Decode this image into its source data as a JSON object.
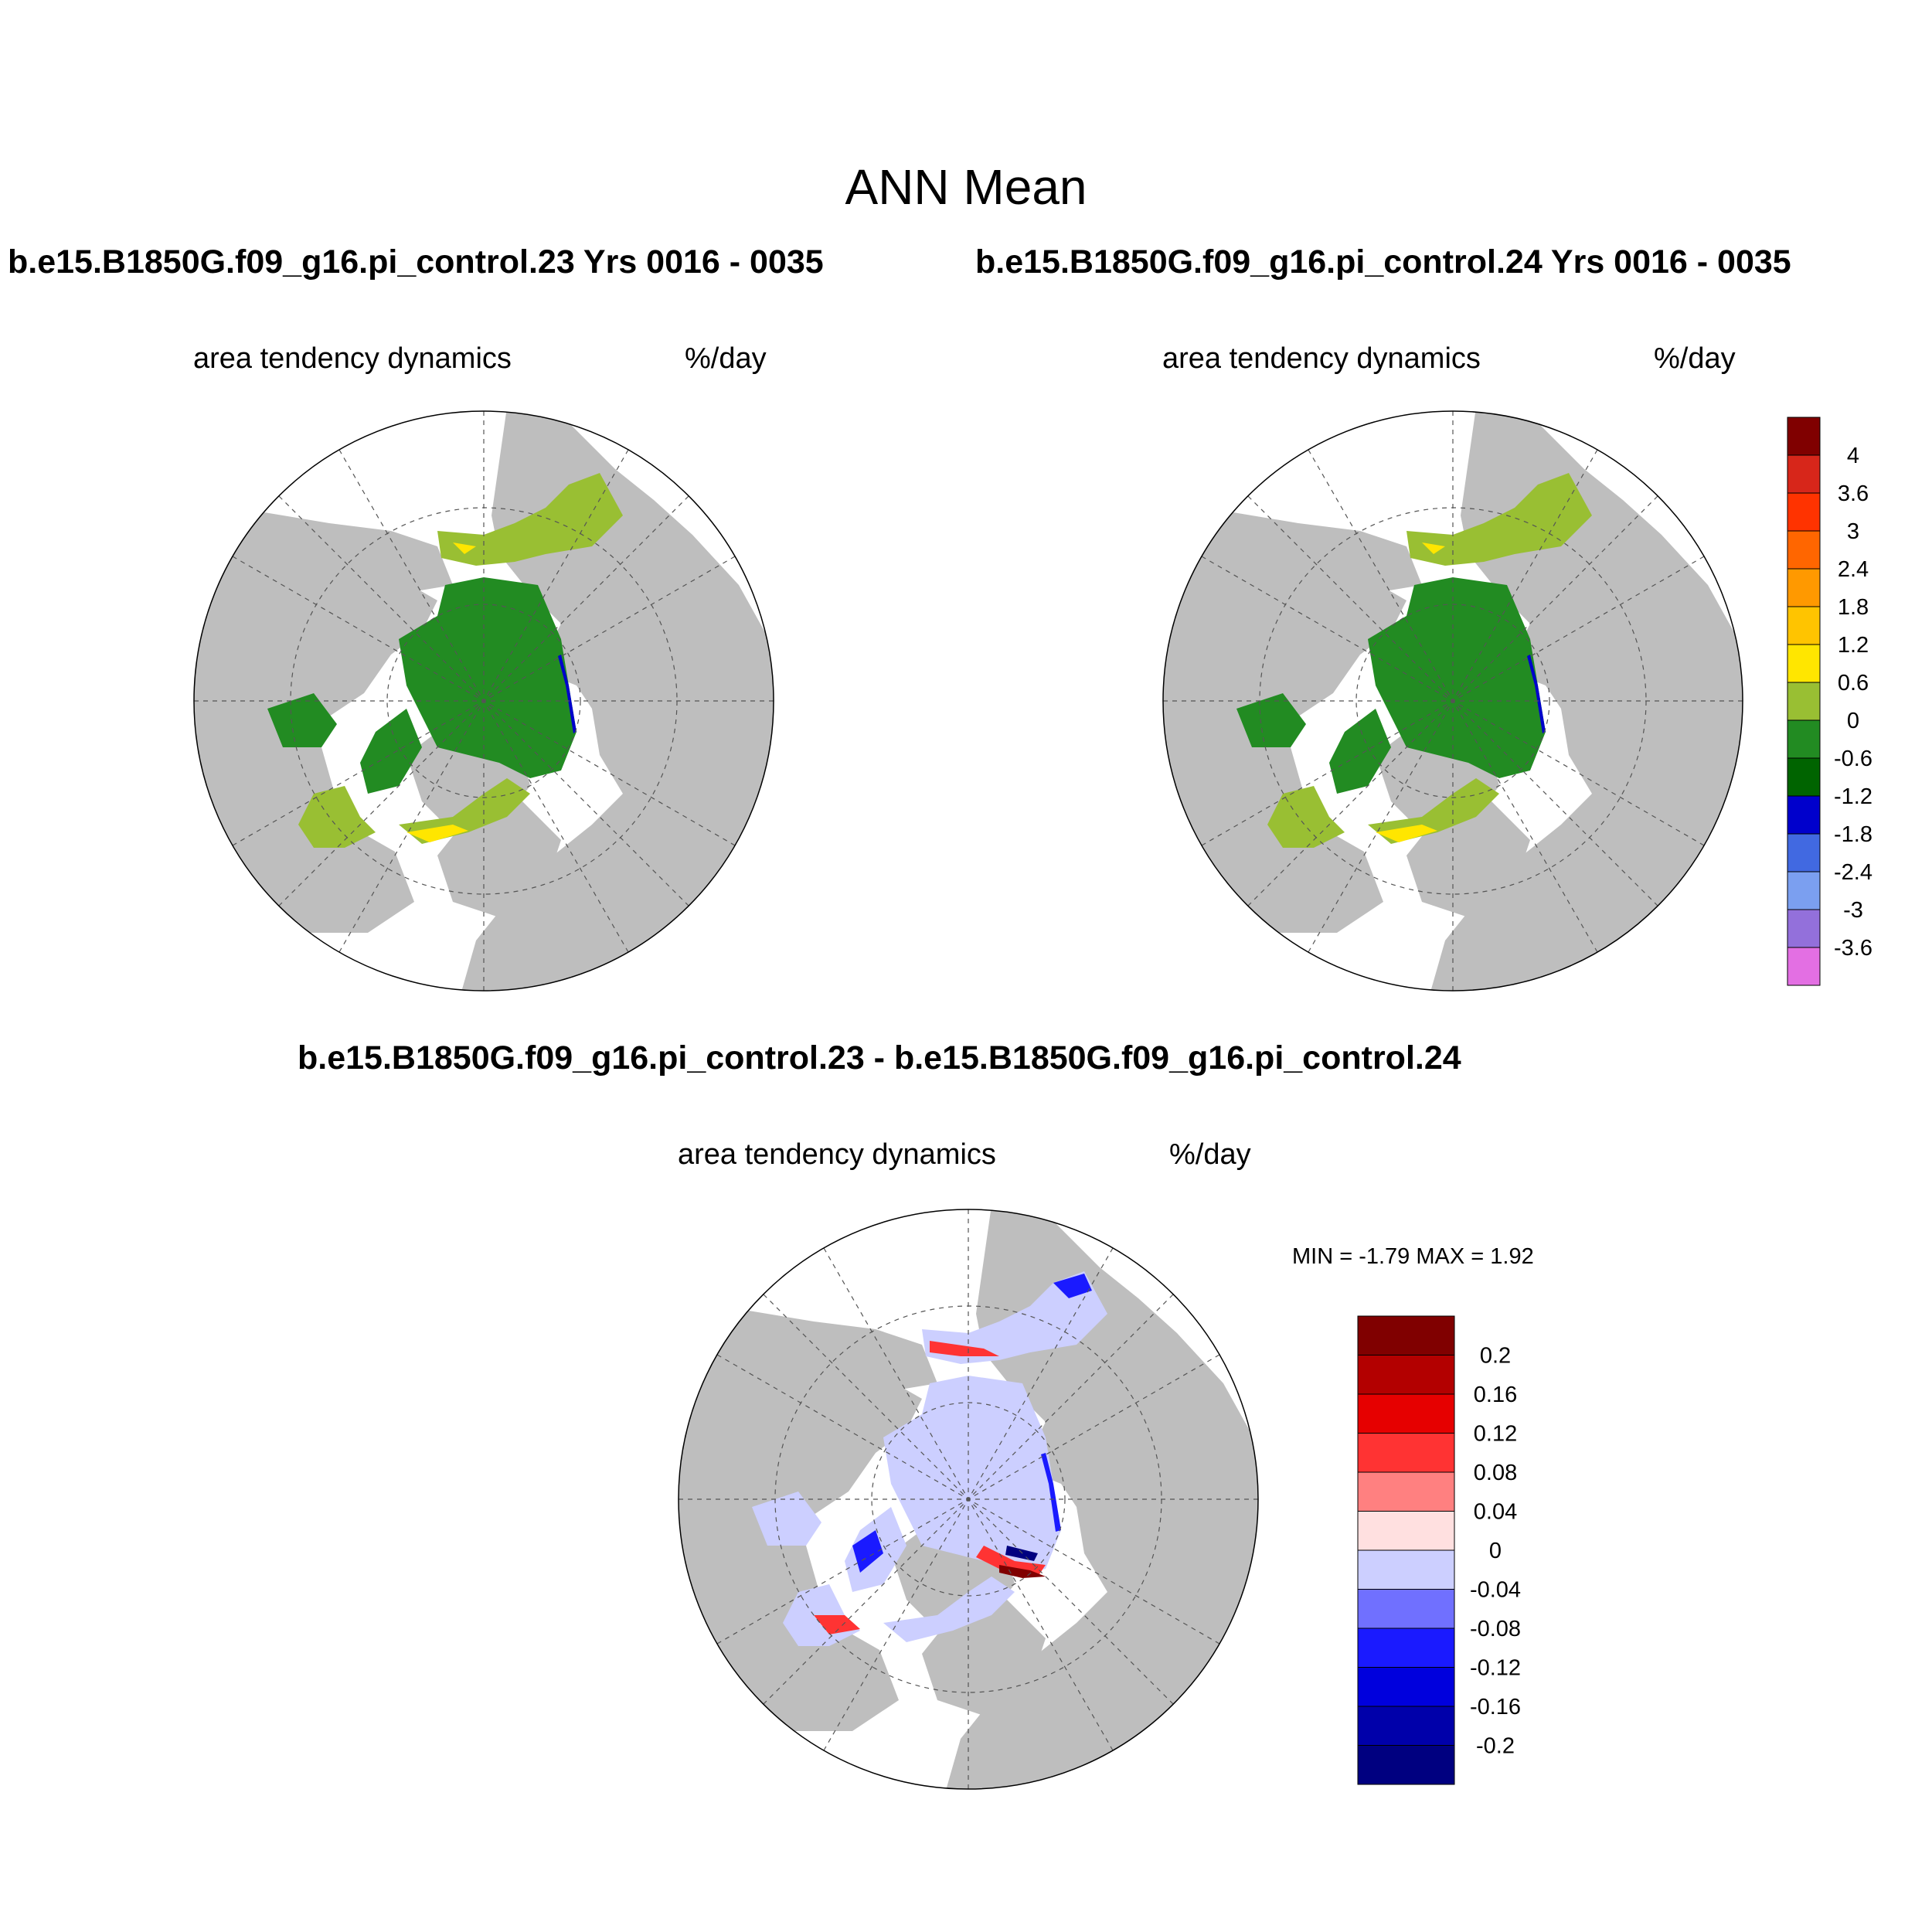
{
  "main_title": "ANN Mean",
  "panels": [
    {
      "case_title": "b.e15.B1850G.f09_g16.pi_control.23  Yrs 0016 - 0035",
      "variable": "area tendency dynamics",
      "units": "%/day"
    },
    {
      "case_title": "b.e15.B1850G.f09_g16.pi_control.24  Yrs 0016 - 0035",
      "variable": "area tendency dynamics",
      "units": "%/day"
    },
    {
      "case_title": "b.e15.B1850G.f09_g16.pi_control.23 - b.e15.B1850G.f09_g16.pi_control.24",
      "variable": "area tendency dynamics",
      "units": "%/day",
      "minmax_text": "MIN =  -1.79 MAX =   1.92"
    }
  ],
  "colorbars": {
    "abs": {
      "labels": [
        "4",
        "3.6",
        "3",
        "2.4",
        "1.8",
        "1.2",
        "0.6",
        "0",
        "-0.6",
        "-1.2",
        "-1.8",
        "-2.4",
        "-3",
        "-3.6"
      ],
      "colors": [
        "#800000",
        "#d7261a",
        "#ff3300",
        "#ff6600",
        "#ff9900",
        "#ffc400",
        "#ffe600",
        "#99bf33",
        "#228b22",
        "#006400",
        "#0000cc",
        "#4169e1",
        "#7b9ff0",
        "#9370db",
        "#e36fe3"
      ]
    },
    "diff": {
      "labels": [
        "0.2",
        "0.16",
        "0.12",
        "0.08",
        "0.04",
        "0",
        "-0.04",
        "-0.08",
        "-0.12",
        "-0.16",
        "-0.2"
      ],
      "colors": [
        "#800000",
        "#b30000",
        "#e60000",
        "#ff3333",
        "#ff8080",
        "#ffe0e0",
        "#cccfff",
        "#7070ff",
        "#1a1aff",
        "#0000dd",
        "#0000aa",
        "#000080"
      ]
    }
  },
  "map_colors": {
    "land": "#bebebe",
    "ocean": "#ffffff",
    "ice_low": "#228b22",
    "ice_edge": "#99bf33",
    "ice_high": "#ffe600",
    "edge_neg": "#0000cc",
    "diff_base": "#cccfff",
    "diff_pos": "#ff3333",
    "diff_neg": "#1a1aff",
    "diff_pos_max": "#800000",
    "diff_neg_max": "#000080"
  }
}
